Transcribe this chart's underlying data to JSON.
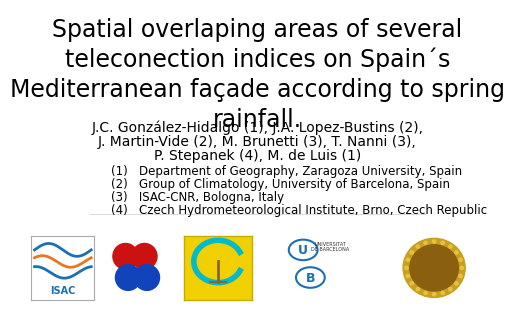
{
  "title": "Spatial overlaping areas of several\nteleconection indices on Spain´s\nMediterranean façade according to spring\nrainfall.",
  "authors_line1": "J.C. González-Hidalgo (1), J.A. Lopez-Bustins (2),",
  "authors_line2": "J. Martin-Vide (2), M. Brunetti (3), T. Nanni (3),",
  "authors_line3": "P. Stepanek (4), M. de Luis (1)",
  "affiliations": [
    "(1)   Department of Geography, Zaragoza University, Spain",
    "(2)   Group of Climatology, University of Barcelona, Spain",
    "(3)   ISAC-CNR, Bologna, Italy",
    "(4)   Czech Hydrometeorological Institute, Brno, Czech Republic"
  ],
  "bg_color": "#ffffff",
  "title_fontsize": 17,
  "authors_fontsize": 10,
  "affiliations_fontsize": 8.5,
  "title_color": "#000000",
  "authors_color": "#000000",
  "affiliations_color": "#000000"
}
